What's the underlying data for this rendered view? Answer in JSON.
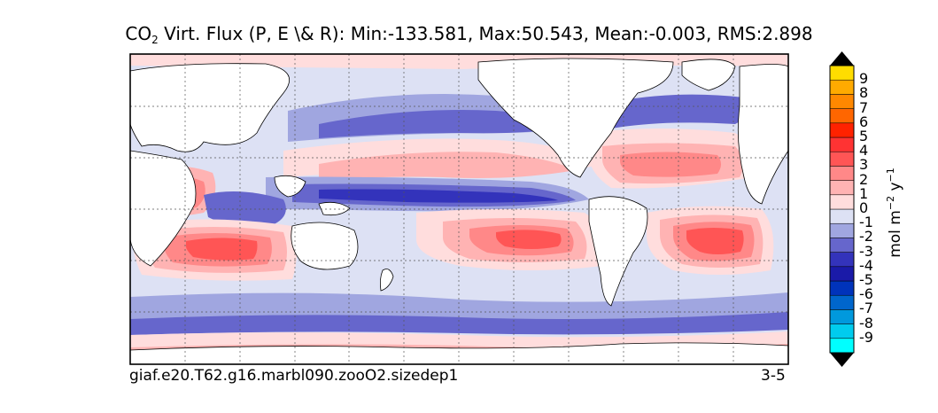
{
  "title": {
    "prefix": "CO",
    "subscript": "2",
    "text": " Virt. Flux (P, E \\& R): Min:-133.581, Max:50.543, Mean:-0.003, RMS:2.898"
  },
  "caption_left": "giaf.e20.T62.g16.marbl090.zooO2.sizedep1",
  "caption_right": "3-5",
  "colorbar": {
    "label_prefix": "mol m",
    "label_exp1": "−2",
    "label_mid": " y",
    "label_exp2": "−1",
    "ticks": [
      "9",
      "8",
      "7",
      "6",
      "5",
      "4",
      "3",
      "2",
      "1",
      "0",
      "-1",
      "-2",
      "-3",
      "-4",
      "-5",
      "-6",
      "-7",
      "-8",
      "-9"
    ],
    "colors": [
      "#00ffff",
      "#00ccee",
      "#0099dd",
      "#0066cc",
      "#0033bb",
      "#1a1aa8",
      "#3333bb",
      "#6666cc",
      "#a0a6e0",
      "#dde1f4",
      "#ffdddd",
      "#ffb3b3",
      "#ff8888",
      "#ff5555",
      "#ff3333",
      "#ff2200",
      "#ff6600",
      "#ff8800",
      "#ffaa00",
      "#ffdd00"
    ],
    "over_color": "#000000",
    "under_color": "#000000"
  },
  "map_colors": {
    "background": "#dde1f4",
    "land": "#ffffff",
    "pos1": "#ffdddd",
    "pos2": "#ffb3b3",
    "pos3": "#ff8888",
    "pos4": "#ff5555",
    "neg1": "#a0a6e0",
    "neg2": "#6666cc",
    "neg3": "#3333bb"
  }
}
